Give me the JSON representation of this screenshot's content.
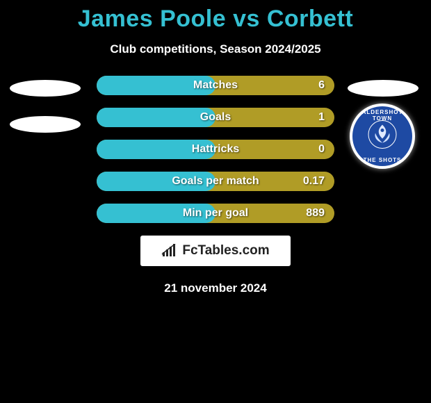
{
  "title": "James Poole vs Corbett",
  "subtitle": "Club competitions, Season 2024/2025",
  "date": "21 november 2024",
  "logo_label": "FcTables.com",
  "right_badge": {
    "name": "aldershot-badge",
    "text_top": "ALDERSHOT TOWN",
    "text_bottom": "THE SHOTS",
    "bg_color": "#1e4aa3",
    "border_color": "#ffffff"
  },
  "bars": {
    "track_color": "#b09c26",
    "fill_color": "#35c0d2",
    "rows": [
      {
        "label": "Matches",
        "value_right": "6",
        "fill_pct": 0.5
      },
      {
        "label": "Goals",
        "value_right": "1",
        "fill_pct": 0.5
      },
      {
        "label": "Hattricks",
        "value_right": "0",
        "fill_pct": 0.5
      },
      {
        "label": "Goals per match",
        "value_right": "0.17",
        "fill_pct": 0.5
      },
      {
        "label": "Min per goal",
        "value_right": "889",
        "fill_pct": 0.5
      }
    ]
  },
  "colors": {
    "background": "#000000",
    "title": "#35c0d2",
    "text": "#ffffff"
  }
}
